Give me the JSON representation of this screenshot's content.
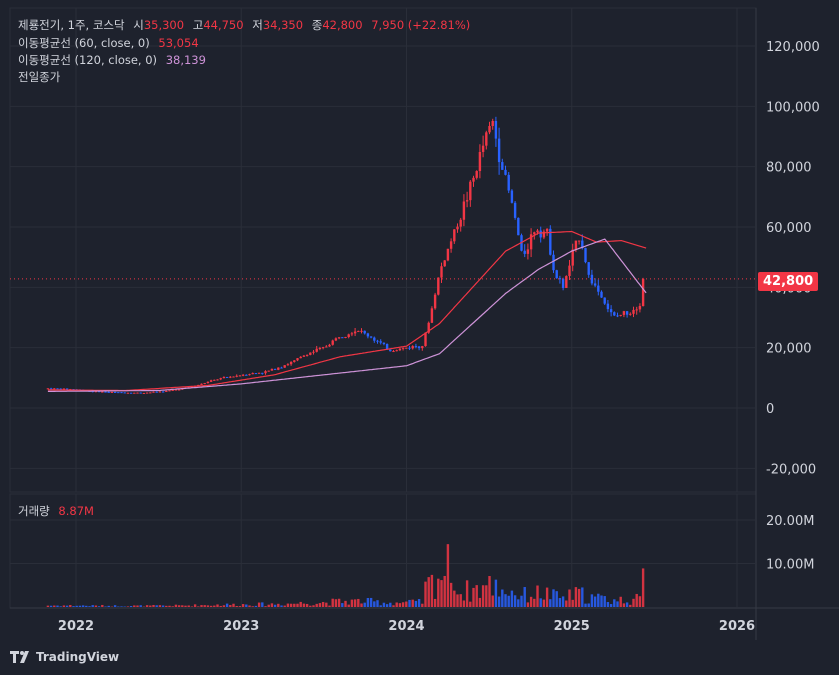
{
  "header": {
    "symbol": "제룡전기, 1주, 코스닥",
    "open_label": "시",
    "open": "35,300",
    "high_label": "고",
    "high": "44,750",
    "low_label": "저",
    "low": "34,350",
    "close_label": "종",
    "close": "42,800",
    "change": "7,950 (+22.81%)"
  },
  "indicators": {
    "ma60_label": "이동평균선 (60, close, 0)",
    "ma60_value": "53,054",
    "ma120_label": "이동평균선 (120, close, 0)",
    "ma120_value": "38,139",
    "prev_close_label": "전일종가"
  },
  "last_price_tag": "42,800",
  "volume_label": "거래량",
  "volume_value": "8.87M",
  "branding": "TradingView",
  "colors": {
    "up": "#f23645",
    "down": "#2962ff",
    "ma60": "#f23645",
    "ma120": "#ce93d8",
    "background": "#1e222d"
  },
  "chart_data": {
    "type": "candlestick",
    "price_axis": {
      "ticks": [
        -20000,
        0,
        20000,
        40000,
        60000,
        80000,
        100000,
        120000
      ],
      "tick_labels": [
        "-20,000",
        "0",
        "20,000",
        "40,000",
        "60,000",
        "80,000",
        "100,000",
        "120,000"
      ]
    },
    "volume_axis": {
      "ticks": [
        10,
        20
      ],
      "tick_labels": [
        "10.00M",
        "20.00M"
      ],
      "unit": "M"
    },
    "x_axis": {
      "years": [
        2022,
        2023,
        2024,
        2025,
        2026
      ]
    },
    "last_close": 42800,
    "price_path": [
      [
        2021.83,
        6500
      ],
      [
        2022.0,
        6200
      ],
      [
        2022.1,
        5500
      ],
      [
        2022.25,
        5200
      ],
      [
        2022.4,
        5000
      ],
      [
        2022.55,
        5600
      ],
      [
        2022.7,
        7000
      ],
      [
        2022.85,
        9500
      ],
      [
        2023.0,
        11000
      ],
      [
        2023.15,
        12000
      ],
      [
        2023.3,
        15000
      ],
      [
        2023.4,
        18000
      ],
      [
        2023.5,
        20000
      ],
      [
        2023.6,
        24000
      ],
      [
        2023.7,
        26000
      ],
      [
        2023.8,
        23000
      ],
      [
        2023.9,
        19000
      ],
      [
        2024.0,
        20000
      ],
      [
        2024.1,
        21000
      ],
      [
        2024.15,
        32000
      ],
      [
        2024.2,
        45000
      ],
      [
        2024.3,
        60000
      ],
      [
        2024.4,
        75000
      ],
      [
        2024.48,
        90000
      ],
      [
        2024.52,
        95000
      ],
      [
        2024.58,
        80000
      ],
      [
        2024.65,
        65000
      ],
      [
        2024.7,
        50000
      ],
      [
        2024.78,
        60000
      ],
      [
        2024.85,
        58000
      ],
      [
        2024.9,
        44000
      ],
      [
        2024.95,
        40000
      ],
      [
        2025.0,
        50000
      ],
      [
        2025.05,
        58000
      ],
      [
        2025.1,
        44000
      ],
      [
        2025.17,
        38000
      ],
      [
        2025.25,
        30000
      ],
      [
        2025.35,
        32000
      ],
      [
        2025.42,
        35000
      ],
      [
        2025.45,
        42800
      ]
    ],
    "ma60_path": [
      [
        2021.83,
        6000
      ],
      [
        2022.3,
        5800
      ],
      [
        2022.8,
        7500
      ],
      [
        2023.2,
        11000
      ],
      [
        2023.6,
        17000
      ],
      [
        2024.0,
        20500
      ],
      [
        2024.2,
        28000
      ],
      [
        2024.4,
        40000
      ],
      [
        2024.6,
        52000
      ],
      [
        2024.8,
        58000
      ],
      [
        2025.0,
        58500
      ],
      [
        2025.15,
        55000
      ],
      [
        2025.3,
        55500
      ],
      [
        2025.45,
        53000
      ]
    ],
    "ma120_path": [
      [
        2021.83,
        5500
      ],
      [
        2022.5,
        5800
      ],
      [
        2023.0,
        8000
      ],
      [
        2023.5,
        11000
      ],
      [
        2024.0,
        14000
      ],
      [
        2024.2,
        18000
      ],
      [
        2024.4,
        28000
      ],
      [
        2024.6,
        38000
      ],
      [
        2024.8,
        46000
      ],
      [
        2025.0,
        52000
      ],
      [
        2025.2,
        56000
      ],
      [
        2025.45,
        38139
      ]
    ]
  }
}
